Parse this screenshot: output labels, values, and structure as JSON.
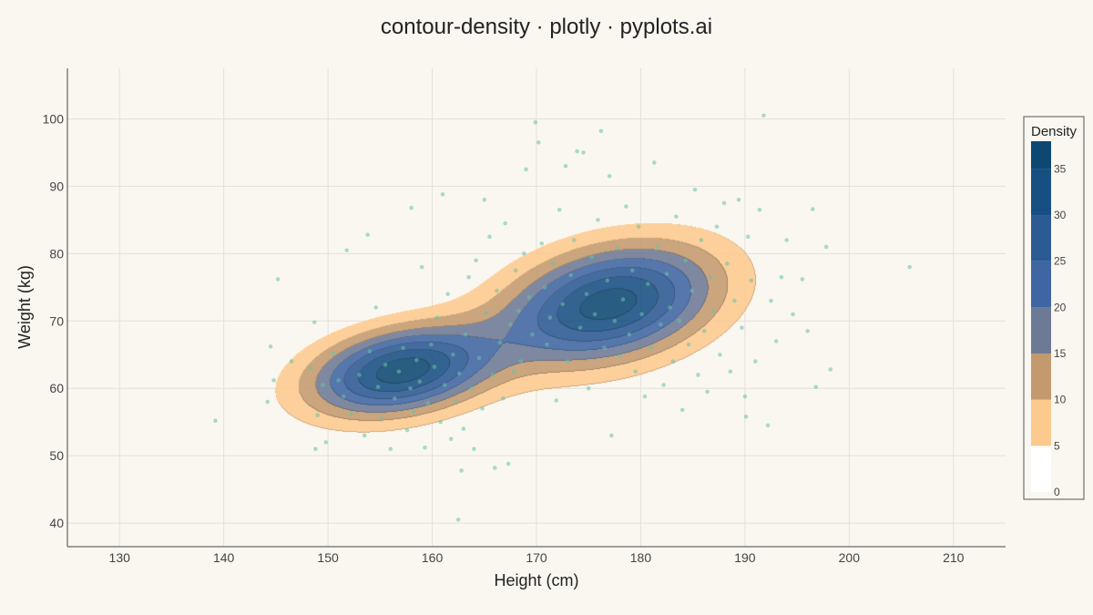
{
  "chart_data": {
    "type": "contour",
    "title": "contour-density · plotly · pyplots.ai",
    "xlabel": "Height (cm)",
    "ylabel": "Weight (kg)",
    "xlim": [
      125,
      215
    ],
    "ylim": [
      36.5,
      107.5
    ],
    "xticks": [
      130,
      140,
      150,
      160,
      170,
      180,
      190,
      200,
      210
    ],
    "yticks": [
      40,
      50,
      60,
      70,
      80,
      90,
      100
    ],
    "grid": true,
    "colorbar": {
      "title": "Density",
      "ticks": [
        0,
        5,
        10,
        15,
        20,
        25,
        30,
        35
      ],
      "range": [
        0,
        38
      ],
      "placement": "right"
    },
    "levels": [
      {
        "value": 5,
        "color": "#fdca8e"
      },
      {
        "value": 10,
        "color": "#c39a6e"
      },
      {
        "value": 15,
        "color": "#6d7a96"
      },
      {
        "value": 20,
        "color": "#3f66a2"
      },
      {
        "value": 25,
        "color": "#2c5a93"
      },
      {
        "value": 30,
        "color": "#184f82"
      },
      {
        "value": 35,
        "color": "#0c4872"
      }
    ],
    "clusters": [
      {
        "center": [
          157,
          62.5
        ],
        "height_sd": 6.0,
        "weight_sd": 4.5,
        "correlation": 0.3
      },
      {
        "center": [
          177,
          72.5
        ],
        "height_sd": 7.0,
        "weight_sd": 6.0,
        "correlation": 0.3
      }
    ],
    "scatter": {
      "color": "#66c2a5",
      "points": [
        [
          139.2,
          55.2
        ],
        [
          144.2,
          58.0
        ],
        [
          144.5,
          66.2
        ],
        [
          144.8,
          61.2
        ],
        [
          145.2,
          76.2
        ],
        [
          146.5,
          64.0
        ],
        [
          148.3,
          63.0
        ],
        [
          148.7,
          69.8
        ],
        [
          148.8,
          51.0
        ],
        [
          149.0,
          56.0
        ],
        [
          149.5,
          60.5
        ],
        [
          149.8,
          52.0
        ],
        [
          150.5,
          65.2
        ],
        [
          151.0,
          61.2
        ],
        [
          151.5,
          58.8
        ],
        [
          151.8,
          80.5
        ],
        [
          152.2,
          56.2
        ],
        [
          153.0,
          62.0
        ],
        [
          153.5,
          53.0
        ],
        [
          153.8,
          82.8
        ],
        [
          154.0,
          65.5
        ],
        [
          154.6,
          72.0
        ],
        [
          154.8,
          60.2
        ],
        [
          155.2,
          55.5
        ],
        [
          155.5,
          63.5
        ],
        [
          156.0,
          51.0
        ],
        [
          156.4,
          58.5
        ],
        [
          156.8,
          62.5
        ],
        [
          157.2,
          66.0
        ],
        [
          157.6,
          53.8
        ],
        [
          157.9,
          60.0
        ],
        [
          158.0,
          86.8
        ],
        [
          158.2,
          56.5
        ],
        [
          158.5,
          64.2
        ],
        [
          158.8,
          61.0
        ],
        [
          159.0,
          78.0
        ],
        [
          159.3,
          51.2
        ],
        [
          159.6,
          57.8
        ],
        [
          159.9,
          66.5
        ],
        [
          160.2,
          63.2
        ],
        [
          160.5,
          70.5
        ],
        [
          160.8,
          55.0
        ],
        [
          161.0,
          88.8
        ],
        [
          161.2,
          60.5
        ],
        [
          161.5,
          74.0
        ],
        [
          161.8,
          52.5
        ],
        [
          162.0,
          65.0
        ],
        [
          162.3,
          58.0
        ],
        [
          162.5,
          40.5
        ],
        [
          162.6,
          62.2
        ],
        [
          162.8,
          47.8
        ],
        [
          163.0,
          54.0
        ],
        [
          163.2,
          68.0
        ],
        [
          163.5,
          76.5
        ],
        [
          163.8,
          60.0
        ],
        [
          164.0,
          51.0
        ],
        [
          164.2,
          79.0
        ],
        [
          164.5,
          64.5
        ],
        [
          164.8,
          57.0
        ],
        [
          165.0,
          88.0
        ],
        [
          165.2,
          71.2
        ],
        [
          165.5,
          82.5
        ],
        [
          165.8,
          62.0
        ],
        [
          166.0,
          48.2
        ],
        [
          166.2,
          74.5
        ],
        [
          166.5,
          66.8
        ],
        [
          166.8,
          58.5
        ],
        [
          167.0,
          84.5
        ],
        [
          167.3,
          48.8
        ],
        [
          167.5,
          69.5
        ],
        [
          167.8,
          62.5
        ],
        [
          168.0,
          77.5
        ],
        [
          168.3,
          71.5
        ],
        [
          168.5,
          64.0
        ],
        [
          168.8,
          80.0
        ],
        [
          169.0,
          92.5
        ],
        [
          169.3,
          73.5
        ],
        [
          169.6,
          68.0
        ],
        [
          169.9,
          99.5
        ],
        [
          170.2,
          96.5
        ],
        [
          170.5,
          81.5
        ],
        [
          170.8,
          75.0
        ],
        [
          171.0,
          66.5
        ],
        [
          171.3,
          70.5
        ],
        [
          171.6,
          78.5
        ],
        [
          171.9,
          58.2
        ],
        [
          172.2,
          86.5
        ],
        [
          172.5,
          72.5
        ],
        [
          172.8,
          93.0
        ],
        [
          173.0,
          64.0
        ],
        [
          173.3,
          76.8
        ],
        [
          173.6,
          82.0
        ],
        [
          173.9,
          95.2
        ],
        [
          174.2,
          69.0
        ],
        [
          174.5,
          95.0
        ],
        [
          174.8,
          74.0
        ],
        [
          175.0,
          60.0
        ],
        [
          175.3,
          79.5
        ],
        [
          175.6,
          71.0
        ],
        [
          175.9,
          85.0
        ],
        [
          176.2,
          98.2
        ],
        [
          176.5,
          66.0
        ],
        [
          176.8,
          76.0
        ],
        [
          177.0,
          91.5
        ],
        [
          177.2,
          53.0
        ],
        [
          177.5,
          70.0
        ],
        [
          177.8,
          80.8
        ],
        [
          178.0,
          64.8
        ],
        [
          178.3,
          73.2
        ],
        [
          178.6,
          87.0
        ],
        [
          178.9,
          68.0
        ],
        [
          179.2,
          77.5
        ],
        [
          179.5,
          62.5
        ],
        [
          179.8,
          84.0
        ],
        [
          180.1,
          71.0
        ],
        [
          180.4,
          58.8
        ],
        [
          180.7,
          75.5
        ],
        [
          181.0,
          66.0
        ],
        [
          181.3,
          93.5
        ],
        [
          181.6,
          81.0
        ],
        [
          181.9,
          69.5
        ],
        [
          182.2,
          60.5
        ],
        [
          182.5,
          77.0
        ],
        [
          182.8,
          72.0
        ],
        [
          183.1,
          64.0
        ],
        [
          183.4,
          85.5
        ],
        [
          183.7,
          70.0
        ],
        [
          184.0,
          56.8
        ],
        [
          184.3,
          79.0
        ],
        [
          184.6,
          66.5
        ],
        [
          184.9,
          74.5
        ],
        [
          185.2,
          89.5
        ],
        [
          185.5,
          62.0
        ],
        [
          185.8,
          82.0
        ],
        [
          186.1,
          68.5
        ],
        [
          186.4,
          59.5
        ],
        [
          186.7,
          76.5
        ],
        [
          187.0,
          71.5
        ],
        [
          187.3,
          84.0
        ],
        [
          187.6,
          65.0
        ],
        [
          188.0,
          87.5
        ],
        [
          188.3,
          78.5
        ],
        [
          188.6,
          62.5
        ],
        [
          189.0,
          73.0
        ],
        [
          189.4,
          88.0
        ],
        [
          189.7,
          69.0
        ],
        [
          190.0,
          58.8
        ],
        [
          190.1,
          55.8
        ],
        [
          190.3,
          82.5
        ],
        [
          190.6,
          76.0
        ],
        [
          191.0,
          64.0
        ],
        [
          191.4,
          86.5
        ],
        [
          191.8,
          100.5
        ],
        [
          192.2,
          54.5
        ],
        [
          192.5,
          73.0
        ],
        [
          193.0,
          67.0
        ],
        [
          193.5,
          76.5
        ],
        [
          194.0,
          82.0
        ],
        [
          194.6,
          71.0
        ],
        [
          195.5,
          76.2
        ],
        [
          196.0,
          68.5
        ],
        [
          196.5,
          86.6
        ],
        [
          196.8,
          60.2
        ],
        [
          197.8,
          81.0
        ],
        [
          198.2,
          62.8
        ],
        [
          205.8,
          78.0
        ]
      ]
    }
  }
}
